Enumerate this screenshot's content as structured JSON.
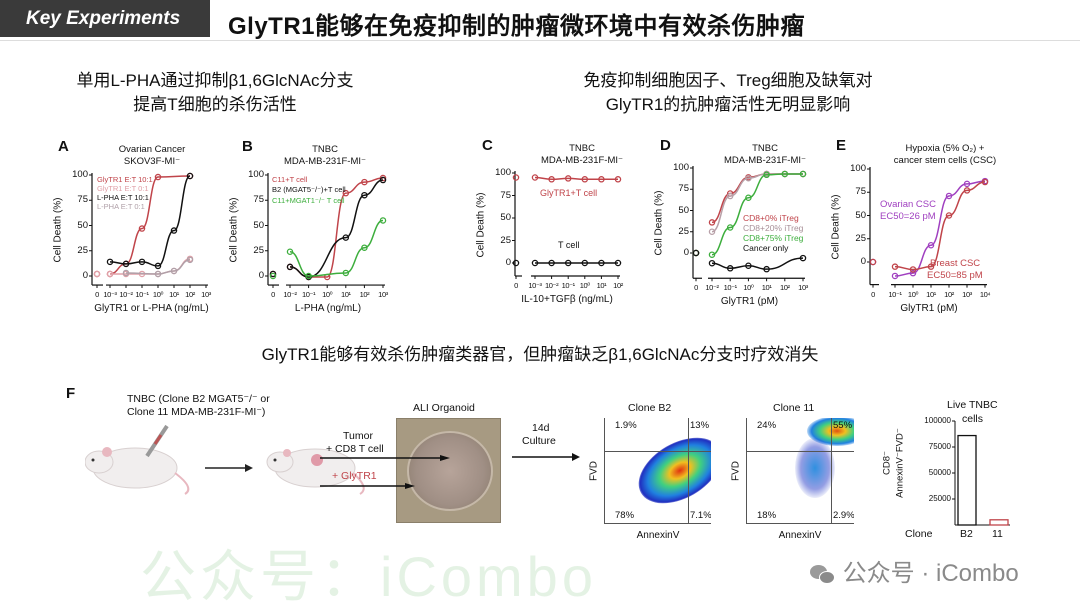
{
  "header": {
    "tag": "Key Experiments",
    "title": "GlyTR1能够在免疫抑制的肿瘤微环境中有效杀伤肿瘤"
  },
  "subtitles": {
    "left": [
      "单用L-PHA通过抑制β1,6GlcNAc分支",
      "提高T细胞的杀伤活性"
    ],
    "right": [
      "免疫抑制细胞因子、Treg细胞及缺氧对",
      "GlyTR1的抗肿瘤活性无明显影响"
    ]
  },
  "middle_caption": "GlyTR1能够有效杀伤肿瘤类器官，但肿瘤缺乏β1,6GlcNAc分支时疗效消失",
  "watermark": {
    "center": "公众号：iCombo",
    "bottom": "公众号 · iCombo"
  },
  "figures": [
    {
      "id": "A",
      "title": [
        "Ovarian Cancer",
        "SKOV3F-MI⁻"
      ],
      "xlabel": "GlyTR1 or L-PHA (ng/mL)",
      "ylabel": "Cell Death (%)",
      "xticks": [
        "0",
        "10⁻³",
        "10⁻²",
        "10⁻¹",
        "10⁰",
        "10¹",
        "10²",
        "10³"
      ],
      "yticks": [
        "0",
        "25",
        "50",
        "75",
        "100"
      ],
      "series": [
        {
          "name": "GlyTR1 E:T 10:1",
          "color": "#c0444a",
          "x": [
            0,
            0.001,
            0.01,
            0.1,
            1,
            100
          ],
          "y": [
            2,
            2,
            12,
            47,
            98,
            99
          ]
        },
        {
          "name": "GlyTR1 E:T  0:1",
          "color": "#e0a0a8",
          "x": [
            0,
            0.001,
            0.01,
            0.1,
            1,
            10,
            100
          ],
          "y": [
            2,
            2,
            2,
            2,
            2,
            5,
            17
          ]
        },
        {
          "name": "L-PHA  E:T 10:1",
          "color": "#111111",
          "x": [
            0.001,
            0.01,
            0.1,
            1,
            10,
            100
          ],
          "y": [
            14,
            12,
            14,
            10,
            45,
            99
          ]
        },
        {
          "name": "L-PHA  E:T  0:1",
          "color": "#b0a0a8",
          "x": [
            0.01,
            1,
            10,
            100
          ],
          "y": [
            3,
            2,
            5,
            16
          ]
        }
      ]
    },
    {
      "id": "B",
      "title": [
        "TNBC",
        "MDA-MB-231F-MI⁻"
      ],
      "xlabel": "L-PHA (ng/mL)",
      "ylabel": "Cell Death (%)",
      "xticks": [
        "0",
        "10⁻²",
        "10⁻¹",
        "10⁰",
        "10¹",
        "10²",
        "10³"
      ],
      "yticks": [
        "0",
        "25",
        "50",
        "75",
        "100"
      ],
      "series": [
        {
          "name": "C11+T cell",
          "color": "#c0444a",
          "x": [
            0,
            0.01,
            0.1,
            1,
            10,
            100,
            1000
          ],
          "y": [
            2,
            9,
            -1,
            -1,
            82,
            93,
            97
          ]
        },
        {
          "name": "B2 (MGAT5⁻/⁻)+T cell",
          "color": "#111111",
          "x": [
            0,
            0.01,
            0.1,
            10,
            100,
            1000
          ],
          "y": [
            2,
            9,
            -1,
            38,
            80,
            95
          ]
        },
        {
          "name": "C11+MGAT1⁻/⁻ T cell",
          "color": "#3dae3d",
          "x": [
            0,
            0.01,
            0.1,
            10,
            100,
            1000
          ],
          "y": [
            0,
            24,
            0,
            3,
            28,
            55
          ]
        }
      ]
    },
    {
      "id": "C",
      "title": [
        "TNBC",
        "MDA-MB-231F-MI⁻"
      ],
      "xlabel": "IL-10+TGFβ (ng/mL)",
      "ylabel": "Cell Death (%)",
      "xticks": [
        "0",
        "10⁻³",
        "10⁻²",
        "10⁻¹",
        "10⁰",
        "10¹",
        "10²"
      ],
      "yticks": [
        "0",
        "25",
        "50",
        "75",
        "100"
      ],
      "series": [
        {
          "name": "GlyTR1+T cell",
          "color": "#c0444a",
          "x": [
            0,
            0.001,
            0.01,
            0.1,
            1,
            10,
            100
          ],
          "y": [
            95,
            95,
            93,
            94,
            93,
            93,
            93
          ]
        },
        {
          "name": "T cell",
          "color": "#111111",
          "x": [
            0,
            0.001,
            0.01,
            0.1,
            1,
            10,
            100
          ],
          "y": [
            0,
            0,
            0,
            0,
            0,
            0,
            0
          ]
        }
      ]
    },
    {
      "id": "D",
      "title": [
        "TNBC",
        "MDA-MB-231F-MI⁻"
      ],
      "xlabel": "GlyTR1 (pM)",
      "ylabel": "Cell Death (%)",
      "xticks": [
        "0",
        "10⁻²",
        "10⁻¹",
        "10⁰",
        "10¹",
        "10²",
        "10³"
      ],
      "yticks": [
        "0",
        "25",
        "50",
        "75",
        "100"
      ],
      "series": [
        {
          "name": "CD8+0% iTreg",
          "color": "#c0444a",
          "x": [
            0,
            0.01,
            0.1,
            1,
            10,
            100,
            1000
          ],
          "y": [
            0,
            36,
            70,
            89,
            93,
            93,
            93
          ]
        },
        {
          "name": "CD8+20% iTreg",
          "color": "#b8a0a8",
          "x": [
            0,
            0.01,
            0.1,
            1,
            10,
            100,
            1000
          ],
          "y": [
            0,
            25,
            67,
            88,
            93,
            93,
            93
          ]
        },
        {
          "name": "CD8+75% iTreg",
          "color": "#3dae3d",
          "x": [
            0,
            0.01,
            0.1,
            1,
            10,
            100,
            1000
          ],
          "y": [
            0,
            -2,
            30,
            65,
            92,
            93,
            93
          ]
        },
        {
          "name": "Cancer only",
          "color": "#111111",
          "x": [
            0,
            0.01,
            0.1,
            1,
            10,
            1000
          ],
          "y": [
            0,
            -12,
            -18,
            -15,
            -19,
            -6
          ]
        }
      ]
    },
    {
      "id": "E",
      "title": [
        "Hypoxia (5% O₂) +",
        "cancer stem cells (CSC)"
      ],
      "xlabel": "GlyTR1 (pM)",
      "ylabel": "Cell Death (%)",
      "xticks": [
        "0",
        "10⁻¹",
        "10⁰",
        "10¹",
        "10²",
        "10³",
        "10⁴"
      ],
      "yticks": [
        "0",
        "25",
        "50",
        "75",
        "100"
      ],
      "series": [
        {
          "name": "Ovarian CSC",
          "note": "EC50=26 pM",
          "color": "#a040c0",
          "x": [
            0,
            0.1,
            1,
            10,
            100,
            1000,
            10000
          ],
          "y": [
            0,
            -15,
            -12,
            18,
            71,
            84,
            87
          ]
        },
        {
          "name": "Breast CSC",
          "note": "EC50=85 pM",
          "color": "#c0444a",
          "x": [
            0,
            0.1,
            1,
            10,
            100,
            1000,
            10000
          ],
          "y": [
            0,
            -5,
            -8,
            -5,
            50,
            77,
            86
          ]
        }
      ]
    }
  ],
  "panelF": {
    "label": "F",
    "model_label": [
      "TNBC (Clone B2 MGAT5⁻/⁻ or",
      "Clone 11 MDA-MB-231F-MI⁻)"
    ],
    "organoid_label": "ALI Organoid",
    "tumor_label": [
      "Tumor",
      "+ CD8 T cell"
    ],
    "glytr1_label": "+ GlyTR1",
    "culture_label": [
      "14d",
      "Culture"
    ],
    "flow": [
      {
        "title": "Clone B2",
        "x_label": "AnnexinV",
        "y_label": "FVD",
        "q_ul": "1.9%",
        "q_ur": "13%",
        "q_ll": "78%",
        "q_lr": "7.1%"
      },
      {
        "title": "Clone 11",
        "x_label": "AnnexinV",
        "y_label": "FVD",
        "q_ul": "24%",
        "q_ur": "55%",
        "q_ll": "18%",
        "q_lr": "2.9%"
      }
    ],
    "bar": {
      "title": [
        "Live TNBC",
        "cells"
      ],
      "ylabel": [
        "CD8⁻",
        "AnnexinV⁻FVD⁻"
      ],
      "xlabel": "Clone",
      "categories": [
        "B2",
        "11"
      ],
      "values": [
        86000,
        5000
      ],
      "colors": [
        "#111111",
        "#c0444a"
      ],
      "yticks": [
        "25000",
        "50000",
        "75000",
        "100000"
      ],
      "ylim": [
        0,
        100000
      ]
    }
  }
}
